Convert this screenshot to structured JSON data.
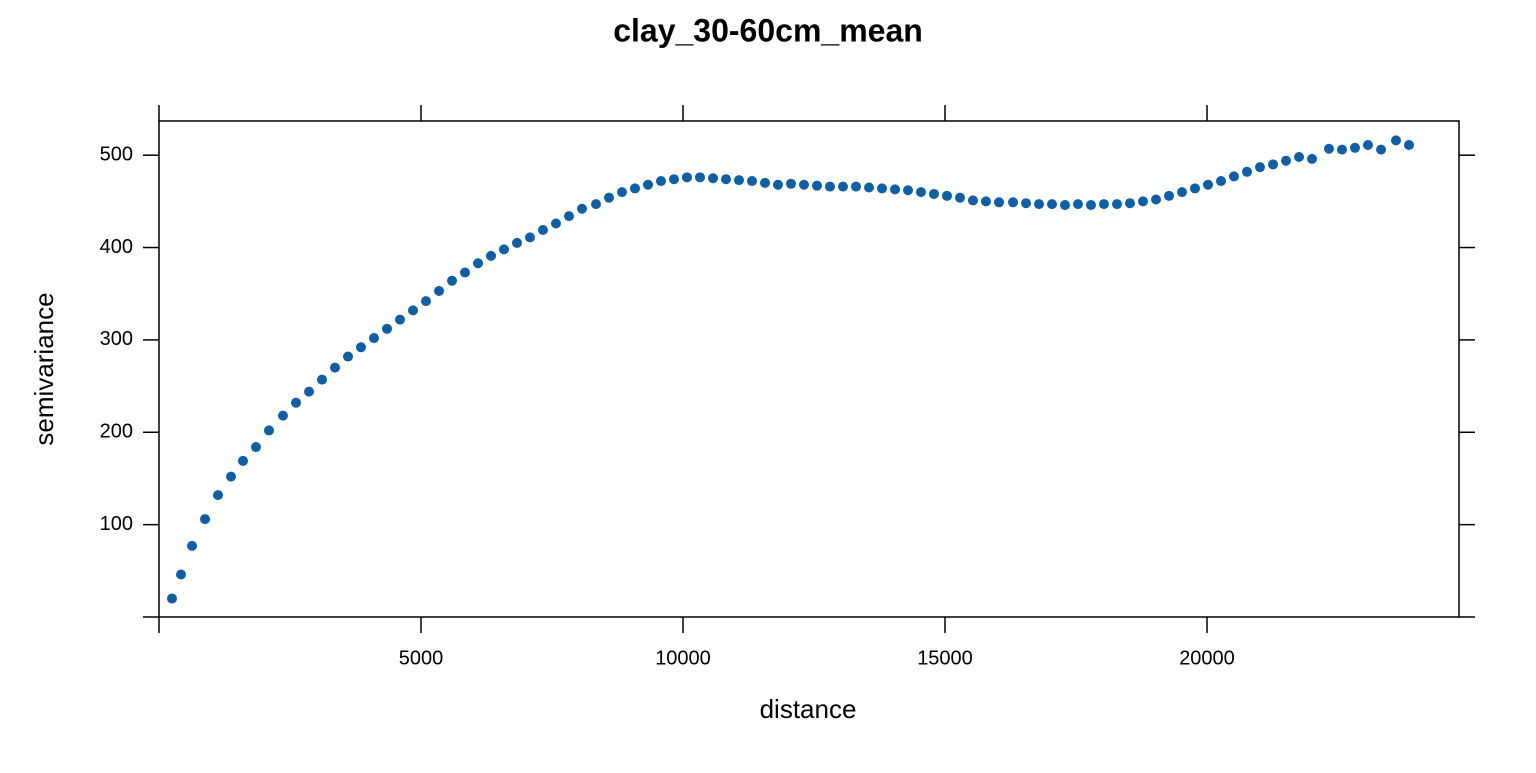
{
  "chart_data": {
    "type": "scatter",
    "title": "clay_30-60cm_mean",
    "x_label": "distance",
    "y_label": "semivariance",
    "color": "#0f5fa6",
    "x": [
      248,
      420,
      630,
      878,
      1126,
      1374,
      1603,
      1851,
      2099,
      2366,
      2615,
      2863,
      3111,
      3359,
      3607,
      3855,
      4103,
      4351,
      4599,
      4847,
      5095,
      5344,
      5592,
      5840,
      6088,
      6336,
      6584,
      6832,
      7080,
      7328,
      7576,
      7824,
      8073,
      8340,
      8588,
      8836,
      9084,
      9332,
      9580,
      9828,
      10076,
      10324,
      10573,
      10821,
      11069,
      11317,
      11565,
      11813,
      12061,
      12309,
      12557,
      12805,
      13053,
      13302,
      13550,
      13798,
      14046,
      14294,
      14542,
      14790,
      15038,
      15286,
      15534,
      15782,
      16031,
      16298,
      16546,
      16794,
      17042,
      17290,
      17538,
      17786,
      18034,
      18282,
      18530,
      18779,
      19027,
      19275,
      19523,
      19771,
      20019,
      20267,
      20515,
      20763,
      21011,
      21260,
      21508,
      21756,
      22004,
      22328,
      22576,
      22824,
      23072,
      23321,
      23607,
      23855
    ],
    "values": [
      20,
      46,
      77,
      106,
      132,
      152,
      169,
      184,
      202,
      218,
      232,
      244,
      257,
      270,
      282,
      292,
      302,
      312,
      322,
      332,
      342,
      353,
      364,
      373,
      383,
      391,
      398,
      405,
      411,
      419,
      426,
      434,
      442,
      447,
      454,
      460,
      464,
      468,
      472,
      474,
      476,
      476,
      475,
      474,
      473,
      472,
      470,
      468,
      469,
      468,
      467,
      466,
      466,
      466,
      465,
      464,
      463,
      462,
      460,
      458,
      456,
      454,
      451,
      450,
      449,
      449,
      448,
      447,
      447,
      446,
      447,
      446,
      447,
      447,
      448,
      450,
      452,
      456,
      460,
      464,
      468,
      472,
      477,
      482,
      487,
      490,
      494,
      498,
      496,
      507,
      506,
      508,
      511,
      506,
      516,
      511
    ],
    "xlim": [
      0,
      24809
    ],
    "ylim": [
      0,
      537
    ],
    "xticks": [
      5000,
      10000,
      15000,
      20000
    ],
    "yticks": [
      100,
      200,
      300,
      400,
      500
    ]
  }
}
